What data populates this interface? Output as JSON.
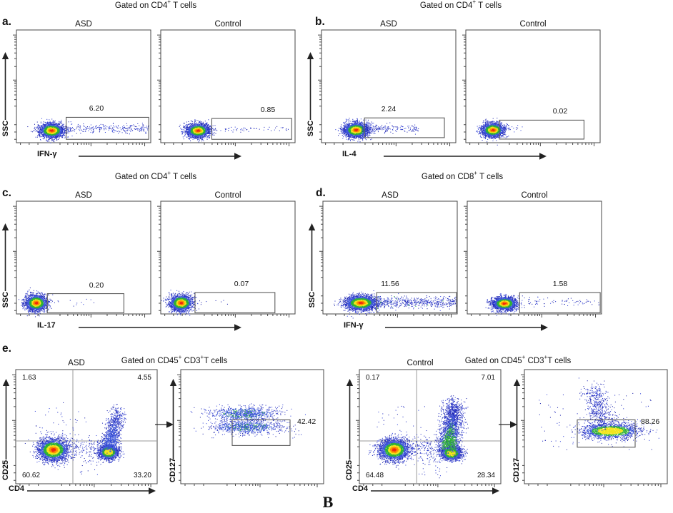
{
  "figure": {
    "bottom_label": "B"
  },
  "colors": {
    "dot_blue": "#2732c4",
    "dot_blue_light": "#3b55d9",
    "dot_green": "#2fb135",
    "dot_yellow": "#f2e51c",
    "dot_orange": "#ff8e00",
    "dot_red": "#ee2a10",
    "axis": "#474747",
    "gate": "#5b5b5b",
    "quadrant_line": "#9a9a9a",
    "text": "#111111"
  },
  "chart_data": {
    "type": "scatter",
    "title": "Flow cytometry dot plots: cytokine-producing T cells and Treg gating, ASD vs Control",
    "panels": [
      {
        "letter": "a.",
        "title_parts": [
          {
            "t": "Gated on CD4"
          },
          {
            "t": "+",
            "sup": true
          },
          {
            "t": " T cells"
          }
        ],
        "y_axis": "SSC",
        "x_axis": "IFN-γ",
        "plots": [
          {
            "group": "ASD",
            "percent": "6.20",
            "cluster": {
              "cx": 0.26,
              "cy": 0.89,
              "sx": 0.045,
              "sy": 0.032,
              "n": 2300
            },
            "band": {
              "x1": 0.33,
              "x2": 0.985,
              "cy": 0.872,
              "sy": 0.02,
              "n": 270,
              "pow": 1
            },
            "gate": [
              0.37,
              0.775,
              0.985,
              0.97
            ]
          },
          {
            "group": "Control",
            "percent": "0.85",
            "cluster": {
              "cx": 0.275,
              "cy": 0.89,
              "sx": 0.043,
              "sy": 0.031,
              "n": 2100
            },
            "band": {
              "x1": 0.36,
              "x2": 0.96,
              "cy": 0.875,
              "sy": 0.018,
              "n": 55,
              "pow": 1
            },
            "gate": [
              0.38,
              0.785,
              0.975,
              0.97
            ]
          }
        ]
      },
      {
        "letter": "b.",
        "title_parts": [
          {
            "t": "Gated on CD4"
          },
          {
            "t": "+",
            "sup": true
          },
          {
            "t": " T cells"
          }
        ],
        "y_axis": "SSC",
        "x_axis": "IL-4",
        "plots": [
          {
            "group": "ASD",
            "percent": "2.24",
            "cluster": {
              "cx": 0.255,
              "cy": 0.885,
              "sx": 0.045,
              "sy": 0.033,
              "n": 2300
            },
            "band": {
              "x1": 0.3,
              "x2": 0.72,
              "cy": 0.868,
              "sy": 0.02,
              "n": 210,
              "pow": 1.6
            },
            "gate": [
              0.32,
              0.78,
              0.915,
              0.955
            ]
          },
          {
            "group": "Control",
            "percent": "0.02",
            "cluster": {
              "cx": 0.2,
              "cy": 0.885,
              "sx": 0.042,
              "sy": 0.031,
              "n": 2100
            },
            "band": {
              "x1": 0.25,
              "x2": 0.42,
              "cy": 0.87,
              "sy": 0.018,
              "n": 12,
              "pow": 1.4
            },
            "gate": [
              0.25,
              0.8,
              0.88,
              0.968
            ]
          }
        ]
      },
      {
        "letter": "c.",
        "title_parts": [
          {
            "t": "Gated on CD4"
          },
          {
            "t": "+",
            "sup": true
          },
          {
            "t": " T cells"
          }
        ],
        "y_axis": "SSC",
        "x_axis": "IL-17",
        "plots": [
          {
            "group": "ASD",
            "percent": "0.20",
            "cluster": {
              "cx": 0.145,
              "cy": 0.9,
              "sx": 0.04,
              "sy": 0.036,
              "n": 2100
            },
            "band": {
              "x1": 0.21,
              "x2": 0.58,
              "cy": 0.885,
              "sy": 0.02,
              "n": 18,
              "pow": 1.4
            },
            "gate": [
              0.23,
              0.82,
              0.8,
              0.99
            ]
          },
          {
            "group": "Control",
            "percent": "0.07",
            "cluster": {
              "cx": 0.15,
              "cy": 0.9,
              "sx": 0.042,
              "sy": 0.036,
              "n": 2100
            },
            "band": {
              "x1": 0.24,
              "x2": 0.5,
              "cy": 0.885,
              "sy": 0.02,
              "n": 7,
              "pow": 1.3
            },
            "gate": [
              0.255,
              0.81,
              0.85,
              0.99
            ]
          }
        ]
      },
      {
        "letter": "d.",
        "title_parts": [
          {
            "t": "Gated on CD8"
          },
          {
            "t": "+",
            "sup": true
          },
          {
            "t": " T cells"
          }
        ],
        "y_axis": "SSC",
        "x_axis": "IFN-γ",
        "plots": [
          {
            "group": "ASD",
            "percent": "11.56",
            "cluster": {
              "cx": 0.28,
              "cy": 0.9,
              "sx": 0.058,
              "sy": 0.032,
              "n": 2700
            },
            "band": {
              "x1": 0.37,
              "x2": 0.99,
              "cy": 0.895,
              "sy": 0.024,
              "n": 520,
              "pow": 1,
              "speck": 0.05
            },
            "gate": [
              0.4,
              0.81,
              0.995,
              0.99
            ]
          },
          {
            "group": "Control",
            "percent": "1.58",
            "cluster": {
              "cx": 0.275,
              "cy": 0.905,
              "sx": 0.044,
              "sy": 0.029,
              "n": 2300
            },
            "band": {
              "x1": 0.38,
              "x2": 0.98,
              "cy": 0.89,
              "sy": 0.02,
              "n": 70,
              "pow": 1
            },
            "gate": [
              0.39,
              0.81,
              0.99,
              0.99
            ]
          }
        ]
      }
    ],
    "panel_e": {
      "letter": "e.",
      "groups": [
        {
          "group": "ASD",
          "title_parts": [
            {
              "t": "Gated on CD45"
            },
            {
              "t": "+",
              "sup": true
            },
            {
              "t": "  CD3"
            },
            {
              "t": "+",
              "sup": true
            },
            {
              "t": "T cells"
            }
          ],
          "quad": {
            "x_axis": "CD4",
            "y_axis": "CD25",
            "values": {
              "tl": "1.63",
              "tr": "4.55",
              "bl": "60.62",
              "br": "33.20"
            },
            "vline": 0.404,
            "hline": 0.625,
            "clusters": [
              {
                "cx": 0.263,
                "cy": 0.7,
                "sx": 0.053,
                "sy": 0.048,
                "n": 2700,
                "cap": 0
              },
              {
                "cx": 0.655,
                "cy": 0.72,
                "sx": 0.034,
                "sy": 0.031,
                "n": 1700,
                "cap": 2
              }
            ],
            "comets": [
              {
                "x1": 0.66,
                "y1": 0.66,
                "x2": 0.72,
                "y2": 0.37,
                "s": 0.03,
                "n": 950,
                "cap": 4,
                "pow": 1.5
              }
            ],
            "bands": [
              {
                "x1": 0.33,
                "x2": 0.6,
                "cy": 0.68,
                "sy": 0.05,
                "n": 170,
                "pow": 1
              }
            ],
            "sparse": [
              {
                "x1": 0.12,
                "x2": 0.5,
                "y1": 0.28,
                "y2": 0.6,
                "n": 35
              },
              {
                "x1": 0.45,
                "x2": 0.6,
                "y1": 0.74,
                "y2": 0.92,
                "n": 25
              }
            ]
          },
          "treg": {
            "y_axis": "CD127",
            "percent": "42.42",
            "clusters": [
              {
                "cx": 0.44,
                "cy": 0.385,
                "sx": 0.115,
                "sy": 0.03,
                "n": 850,
                "cap": 4,
                "speck": 0.18
              },
              {
                "cx": 0.46,
                "cy": 0.5,
                "sx": 0.115,
                "sy": 0.028,
                "n": 850,
                "cap": 4,
                "speck": 0.18
              }
            ],
            "comets": [],
            "sparse": [
              {
                "x1": 0.15,
                "x2": 0.85,
                "y1": 0.3,
                "y2": 0.6,
                "n": 120
              }
            ],
            "gate": [
              0.36,
              0.44,
              0.765,
              0.665
            ]
          }
        },
        {
          "group": "Control",
          "title_parts": [
            {
              "t": "Gated on CD45"
            },
            {
              "t": "+",
              "sup": true
            },
            {
              "t": "  CD3"
            },
            {
              "t": "+",
              "sup": true
            },
            {
              "t": "T cells"
            }
          ],
          "quad": {
            "x_axis": "CD4",
            "y_axis": "CD25",
            "values": {
              "tl": "0.17",
              "tr": "7.01",
              "bl": "64.48",
              "br": "28.34"
            },
            "vline": 0.405,
            "hline": 0.625,
            "clusters": [
              {
                "cx": 0.245,
                "cy": 0.7,
                "sx": 0.051,
                "sy": 0.046,
                "n": 2700,
                "cap": 0
              },
              {
                "cx": 0.648,
                "cy": 0.73,
                "sx": 0.036,
                "sy": 0.029,
                "n": 1700,
                "cap": 2
              }
            ],
            "comets": [
              {
                "x1": 0.63,
                "y1": 0.67,
                "x2": 0.665,
                "y2": 0.3,
                "s": 0.036,
                "n": 2000,
                "cap": 3,
                "pow": 1.4
              }
            ],
            "bands": [
              {
                "x1": 0.32,
                "x2": 0.6,
                "cy": 0.69,
                "sy": 0.05,
                "n": 200,
                "pow": 1
              }
            ],
            "sparse": [
              {
                "x1": 0.12,
                "x2": 0.5,
                "y1": 0.3,
                "y2": 0.6,
                "n": 30
              },
              {
                "x1": 0.4,
                "x2": 0.62,
                "y1": 0.75,
                "y2": 0.95,
                "n": 40
              }
            ]
          },
          "treg": {
            "y_axis": "CD127",
            "percent": "88.26",
            "clusters": [
              {
                "cx": 0.6,
                "cy": 0.535,
                "sx": 0.1,
                "sy": 0.033,
                "n": 1900,
                "cap": 2
              }
            ],
            "comets": [
              {
                "x1": 0.55,
                "y1": 0.45,
                "x2": 0.47,
                "y2": 0.17,
                "s": 0.045,
                "n": 500,
                "cap": 5,
                "pow": 1.3
              }
            ],
            "sparse": [
              {
                "x1": 0.1,
                "x2": 0.9,
                "y1": 0.2,
                "y2": 0.7,
                "n": 100
              }
            ],
            "gate": [
              0.37,
              0.44,
              0.775,
              0.68
            ]
          }
        }
      ]
    }
  }
}
